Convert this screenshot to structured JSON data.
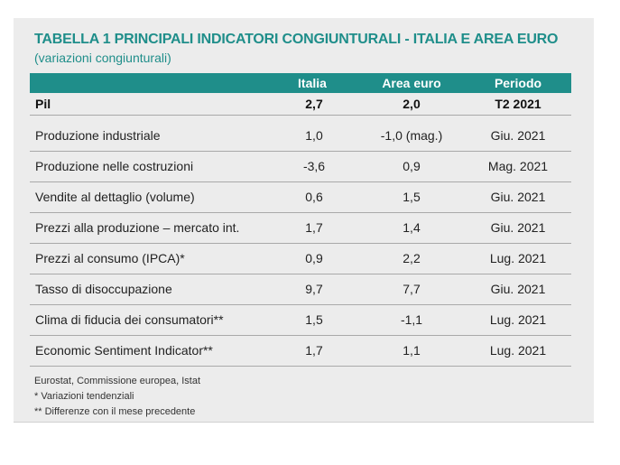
{
  "table": {
    "title": "TABELLA 1  PRINCIPALI INDICATORI CONGIUNTURALI - ITALIA E AREA EURO",
    "subtitle": "(variazioni congiunturali)",
    "headers": [
      "",
      "Italia",
      "Area euro",
      "Periodo"
    ],
    "rows": [
      {
        "label": "Pil",
        "italia": "2,7",
        "area": "2,0",
        "periodo": "T2 2021"
      },
      {
        "label": "Produzione industriale",
        "italia": "1,0",
        "area": "-1,0 (mag.)",
        "periodo": "Giu. 2021"
      },
      {
        "label": "Produzione nelle costruzioni",
        "italia": "-3,6",
        "area": "0,9",
        "periodo": "Mag. 2021"
      },
      {
        "label": "Vendite al dettaglio (volume)",
        "italia": "0,6",
        "area": "1,5",
        "periodo": "Giu. 2021"
      },
      {
        "label": "Prezzi alla produzione – mercato int.",
        "italia": "1,7",
        "area": "1,4",
        "periodo": "Giu. 2021"
      },
      {
        "label": "Prezzi al consumo (IPCA)*",
        "italia": "0,9",
        "area": "2,2",
        "periodo": "Lug. 2021"
      },
      {
        "label": "Tasso di disoccupazione",
        "italia": "9,7",
        "area": "7,7",
        "periodo": "Giu. 2021"
      },
      {
        "label": "Clima di fiducia dei consumatori**",
        "italia": "1,5",
        "area": "-1,1",
        "periodo": "Lug. 2021"
      },
      {
        "label": "Economic Sentiment Indicator**",
        "italia": "1,7",
        "area": "1,1",
        "periodo": "Lug. 2021"
      }
    ],
    "notes": [
      "Eurostat, Commissione europea, Istat",
      "* Variazioni tendenziali",
      "** Differenze con il mese precedente"
    ]
  }
}
